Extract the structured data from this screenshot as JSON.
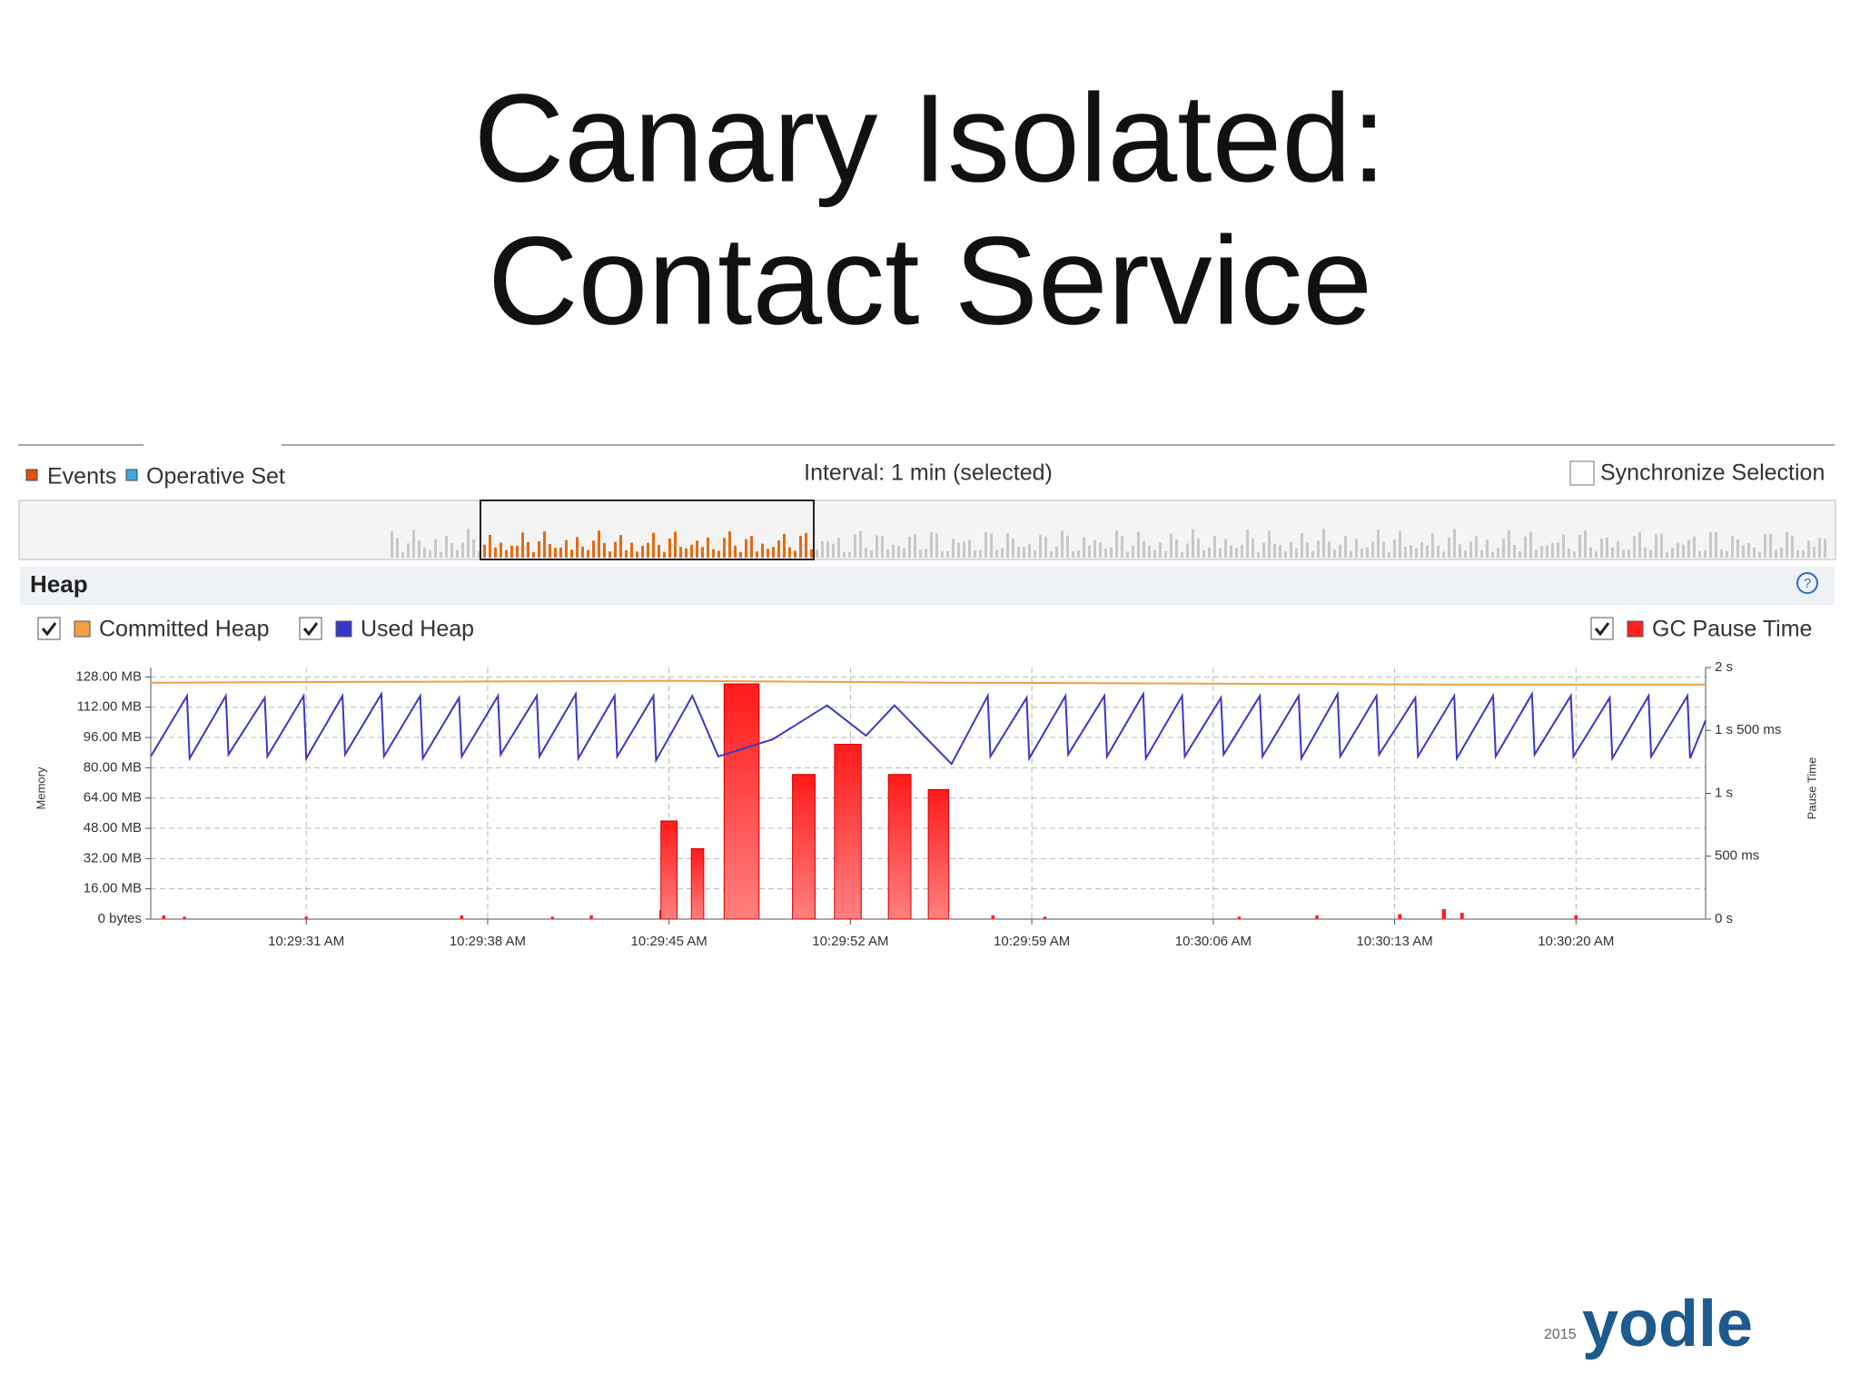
{
  "slide": {
    "title_lines": [
      "Canary Isolated:",
      "Contact Service"
    ],
    "year": "2015",
    "logo": "yodle"
  },
  "toolbar": {
    "legend": [
      "Events",
      "Operative Set"
    ],
    "interval": "Interval: 1 min (selected)",
    "sync": "Synchronize Selection"
  },
  "panel": {
    "title": "Heap"
  },
  "chart_data": {
    "type": "line",
    "y_label": "Memory",
    "y2_label": "Pause Time",
    "xlim": [
      37765,
      37825
    ],
    "xticks": [
      {
        "value": 37771,
        "label": "10:29:31 AM"
      },
      {
        "value": 37778,
        "label": "10:29:38 AM"
      },
      {
        "value": 37785,
        "label": "10:29:45 AM"
      },
      {
        "value": 37792,
        "label": "10:29:52 AM"
      },
      {
        "value": 37799,
        "label": "10:29:59 AM"
      },
      {
        "value": 37806,
        "label": "10:30:06 AM"
      },
      {
        "value": 37813,
        "label": "10:30:13 AM"
      },
      {
        "value": 37820,
        "label": "10:30:20 AM"
      }
    ],
    "ylim": [
      0,
      133
    ],
    "yticks": [
      {
        "value": 0,
        "label": "0 bytes"
      },
      {
        "value": 16,
        "label": "16.00 MB"
      },
      {
        "value": 32,
        "label": "32.00 MB"
      },
      {
        "value": 48,
        "label": "48.00 MB"
      },
      {
        "value": 64,
        "label": "64.00 MB"
      },
      {
        "value": 80,
        "label": "80.00 MB"
      },
      {
        "value": 96,
        "label": "96.00 MB"
      },
      {
        "value": 112,
        "label": "112.00 MB"
      },
      {
        "value": 128,
        "label": "128.00 MB"
      }
    ],
    "y2lim": [
      0,
      2
    ],
    "y2ticks": [
      {
        "value": 0,
        "label": "0 s"
      },
      {
        "value": 0.5,
        "label": "500 ms"
      },
      {
        "value": 1,
        "label": "1 s"
      },
      {
        "value": 1.5,
        "label": "1 s 500 ms"
      },
      {
        "value": 2,
        "label": "2 s"
      }
    ],
    "grid": true,
    "series": [
      {
        "name": "Committed Heap",
        "color": "#f0a040",
        "type": "line",
        "x": [
          37765,
          37785,
          37796,
          37815,
          37825
        ],
        "values": [
          125,
          126,
          125,
          124,
          124
        ]
      },
      {
        "name": "Used Heap",
        "color": "#3838c8",
        "type": "line",
        "x": [
          37765.0,
          37766.4,
          37766.5,
          37767.9,
          37768.0,
          37769.4,
          37769.5,
          37770.9,
          37771.0,
          37772.4,
          37772.5,
          37773.9,
          37774.0,
          37775.4,
          37775.5,
          37776.9,
          37777.0,
          37778.4,
          37778.5,
          37779.9,
          37780.0,
          37781.4,
          37781.5,
          37782.9,
          37783.0,
          37784.4,
          37784.5,
          37785.9,
          37786.9,
          37789.0,
          37791.1,
          37792.6,
          37793.7,
          37795.9,
          37797.3,
          37797.4,
          37798.8,
          37798.9,
          37800.3,
          37800.4,
          37801.8,
          37801.9,
          37803.3,
          37803.4,
          37804.8,
          37804.9,
          37806.3,
          37806.4,
          37807.8,
          37807.9,
          37809.3,
          37809.4,
          37810.8,
          37810.9,
          37812.3,
          37812.4,
          37813.8,
          37813.9,
          37815.3,
          37815.4,
          37816.8,
          37816.9,
          37818.3,
          37818.4,
          37819.8,
          37819.9,
          37821.3,
          37821.4,
          37822.8,
          37822.9,
          37824.3,
          37824.4,
          37825.0
        ],
        "values": [
          86,
          118,
          85,
          118,
          87,
          117,
          86,
          118,
          85,
          118,
          87,
          119,
          86,
          118,
          85,
          117,
          86,
          118,
          87,
          118,
          86,
          119,
          85,
          118,
          86,
          118,
          84,
          118,
          86,
          95,
          113,
          97,
          113,
          82,
          118,
          86,
          117,
          85,
          118,
          87,
          118,
          86,
          119,
          85,
          118,
          86,
          117,
          87,
          118,
          86,
          118,
          85,
          119,
          86,
          118,
          87,
          117,
          86,
          118,
          85,
          118,
          86,
          119,
          87,
          118,
          86,
          117,
          85,
          118,
          86,
          118,
          85,
          105
        ]
      },
      {
        "name": "GC Pause Time",
        "color": "#ff2020",
        "type": "bar",
        "axis": "y2",
        "x": [
          37765.5,
          37766.3,
          37771.0,
          37777.0,
          37780.5,
          37782.0,
          37784.7,
          37785.0,
          37786.1,
          37787.8,
          37790.2,
          37791.9,
          37793.9,
          37795.4,
          37797.5,
          37799.5,
          37807.0,
          37810.0,
          37813.2,
          37814.9,
          37815.6,
          37820.0
        ],
        "values": [
          0.03,
          0.02,
          0.02,
          0.03,
          0.02,
          0.03,
          0.07,
          0.78,
          0.56,
          1.87,
          1.15,
          1.39,
          1.15,
          1.03,
          0.03,
          0.02,
          0.02,
          0.03,
          0.04,
          0.08,
          0.05,
          0.03
        ]
      }
    ]
  }
}
